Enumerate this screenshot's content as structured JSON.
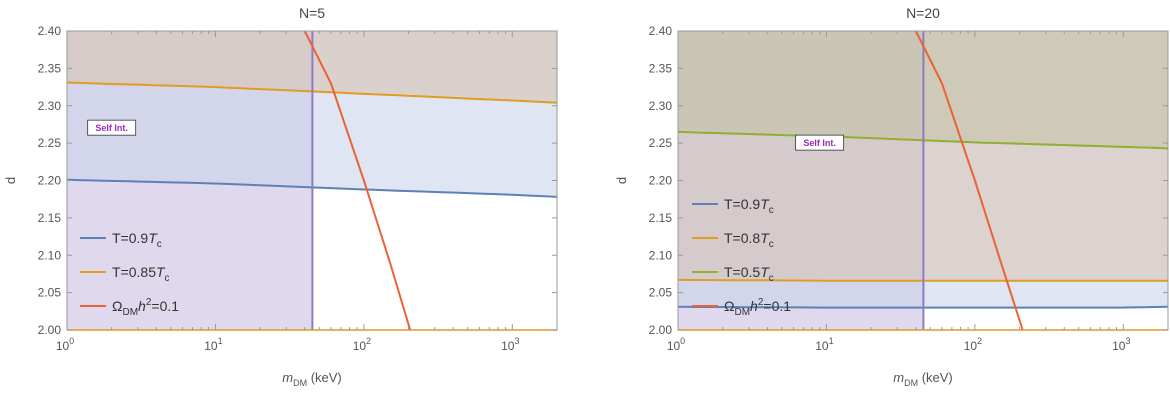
{
  "figure": {
    "colors": {
      "blue": "#5e81b5",
      "orange": "#e19c24",
      "green": "#8fb032",
      "red": "#eb6235",
      "purple": "#8c7cc4",
      "annotation_text": "#9b2ab8",
      "region_selfint": "#d8d0e8",
      "region_blue": "#dfe6f0",
      "region_orange": "#e2d8c8",
      "region_green": "#dcdcb4"
    }
  },
  "chart_data": [
    {
      "type": "line",
      "title": "N=5",
      "xlabel_main": "m",
      "xlabel_sub": "DM",
      "xlabel_unit": "(keV)",
      "ylabel": "d",
      "xscale": "log",
      "xlim": [
        1,
        2000
      ],
      "ylim": [
        2.0,
        2.4
      ],
      "xticks": [
        {
          "value": 1,
          "base": "10",
          "exp": "0"
        },
        {
          "value": 10,
          "base": "10",
          "exp": "1"
        },
        {
          "value": 100,
          "base": "10",
          "exp": "2"
        },
        {
          "value": 1000,
          "base": "10",
          "exp": "3"
        }
      ],
      "yticks": [
        "2.00",
        "2.05",
        "2.10",
        "2.15",
        "2.20",
        "2.25",
        "2.30",
        "2.35",
        "2.40"
      ],
      "annotation": {
        "text": "Self Int.",
        "x": 2.0,
        "y": 2.27
      },
      "vertical_line": {
        "x": 45,
        "color": "#8c7cc4"
      },
      "regions": [
        {
          "name": "self-int",
          "x_from": 1,
          "x_to": 45,
          "y_from": 2.0,
          "y_to": 2.4,
          "color": "#d8d0e8",
          "opacity": 0.8
        },
        {
          "name": "T=0.9",
          "boundary": "T=0.9",
          "color": "#c9d4ea",
          "opacity": 0.6
        },
        {
          "name": "T=0.85",
          "boundary": "T=0.85",
          "color": "#d9c3b2",
          "opacity": 0.6
        }
      ],
      "series": [
        {
          "name": "T=0.9",
          "name_sub": "c",
          "color": "#5e81b5",
          "points": [
            [
              1,
              2.201
            ],
            [
              10,
              2.196
            ],
            [
              100,
              2.188
            ],
            [
              1000,
              2.181
            ],
            [
              2000,
              2.178
            ]
          ]
        },
        {
          "name": "T=0.85",
          "name_sub": "c",
          "color": "#e19c24",
          "points": [
            [
              1,
              2.331
            ],
            [
              10,
              2.325
            ],
            [
              100,
              2.316
            ],
            [
              1000,
              2.307
            ],
            [
              2000,
              2.304
            ]
          ]
        }
      ],
      "relic_line": {
        "name": "Ω",
        "name_sub": "DM",
        "name_tail": "h",
        "name_sup": "2",
        "name_end": "=0.1",
        "color": "#eb6235",
        "points": [
          [
            40,
            2.4
          ],
          [
            60,
            2.33
          ],
          [
            100,
            2.2
          ],
          [
            150,
            2.09
          ],
          [
            205,
            2.0
          ]
        ]
      },
      "legend": [
        "T=0.9",
        "T=0.85",
        "relic"
      ]
    },
    {
      "type": "line",
      "title": "N=20",
      "xlabel_main": "m",
      "xlabel_sub": "DM",
      "xlabel_unit": "(keV)",
      "ylabel": "d",
      "xscale": "log",
      "xlim": [
        1,
        2000
      ],
      "ylim": [
        2.0,
        2.4
      ],
      "xticks": [
        {
          "value": 1,
          "base": "10",
          "exp": "0"
        },
        {
          "value": 10,
          "base": "10",
          "exp": "1"
        },
        {
          "value": 100,
          "base": "10",
          "exp": "2"
        },
        {
          "value": 1000,
          "base": "10",
          "exp": "3"
        }
      ],
      "yticks": [
        "2.00",
        "2.05",
        "2.10",
        "2.15",
        "2.20",
        "2.25",
        "2.30",
        "2.35",
        "2.40"
      ],
      "annotation": {
        "text": "Self Int.",
        "x": 9.0,
        "y": 2.25
      },
      "vertical_line": {
        "x": 45,
        "color": "#8c7cc4"
      },
      "regions": [
        {
          "name": "self-int",
          "x_from": 1,
          "x_to": 45,
          "y_from": 2.0,
          "y_to": 2.4,
          "color": "#d8d0e8",
          "opacity": 0.8
        },
        {
          "name": "T=0.9",
          "boundary": "T=0.9",
          "color": "#c9d4ea",
          "opacity": 0.6
        },
        {
          "name": "T=0.8",
          "boundary": "T=0.8",
          "color": "#d9c3b2",
          "opacity": 0.55
        },
        {
          "name": "T=0.5",
          "boundary": "T=0.5",
          "color": "#bfbf98",
          "opacity": 0.45
        }
      ],
      "series": [
        {
          "name": "T=0.9",
          "name_sub": "c",
          "color": "#5e81b5",
          "points": [
            [
              1,
              2.031
            ],
            [
              10,
              2.03
            ],
            [
              100,
              2.03
            ],
            [
              1000,
              2.03
            ],
            [
              2000,
              2.031
            ]
          ]
        },
        {
          "name": "T=0.8",
          "name_sub": "c",
          "color": "#e19c24",
          "points": [
            [
              1,
              2.067
            ],
            [
              10,
              2.066
            ],
            [
              100,
              2.066
            ],
            [
              1000,
              2.066
            ],
            [
              2000,
              2.066
            ]
          ]
        },
        {
          "name": "T=0.5",
          "name_sub": "c",
          "color": "#8fb032",
          "points": [
            [
              1,
              2.265
            ],
            [
              10,
              2.259
            ],
            [
              100,
              2.251
            ],
            [
              1000,
              2.245
            ],
            [
              2000,
              2.243
            ]
          ]
        }
      ],
      "relic_line": {
        "name": "Ω",
        "name_sub": "DM",
        "name_tail": "h",
        "name_sup": "2",
        "name_end": "=0.1",
        "color": "#eb6235",
        "points": [
          [
            40,
            2.4
          ],
          [
            60,
            2.33
          ],
          [
            100,
            2.2
          ],
          [
            150,
            2.09
          ],
          [
            210,
            2.0
          ]
        ]
      },
      "legend": [
        "T=0.9",
        "T=0.8",
        "T=0.5",
        "relic"
      ]
    }
  ]
}
